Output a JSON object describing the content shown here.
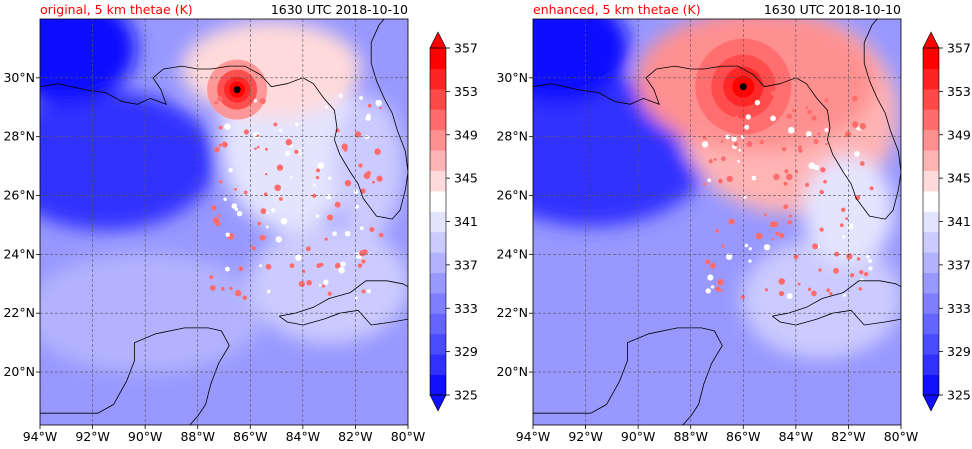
{
  "chart_data": [
    {
      "type": "heatmap",
      "title_left": "original, 5 km thetae (K)",
      "title_right": "1630 UTC 2018-10-10",
      "lon_ticks": [
        -94,
        -92,
        -90,
        -88,
        -86,
        -84,
        -82,
        -80
      ],
      "lat_ticks": [
        20,
        22,
        24,
        26,
        28,
        30
      ],
      "lon_tick_labels": [
        "94°W",
        "92°W",
        "90°W",
        "88°W",
        "86°W",
        "84°W",
        "82°W",
        "80°W"
      ],
      "lat_tick_labels": [
        "20°N",
        "22°N",
        "24°N",
        "26°N",
        "28°N",
        "30°N"
      ],
      "xlim": [
        -94,
        -80
      ],
      "ylim": [
        18.2,
        32
      ],
      "storm_center": {
        "lon": -86.5,
        "lat": 29.6
      },
      "colorbar_levels": [
        325,
        327,
        329,
        331,
        333,
        335,
        337,
        339,
        341,
        343,
        345,
        347,
        349,
        351,
        353,
        355,
        357
      ],
      "colorbar_tick_labels": [
        "325",
        "329",
        "333",
        "337",
        "341",
        "345",
        "349",
        "353",
        "357"
      ],
      "colorbar_colors": [
        "#1010ff",
        "#3030ff",
        "#4a4aff",
        "#6464ff",
        "#7e7eff",
        "#9898ff",
        "#b2b2ff",
        "#cbcbff",
        "#e4e4ff",
        "#ffffff",
        "#ffdada",
        "#ffb4b4",
        "#ff9090",
        "#ff6c6c",
        "#ff4848",
        "#ff2424",
        "#ff0000"
      ],
      "grid": true
    },
    {
      "type": "heatmap",
      "title_left": "enhanced, 5 km thetae (K)",
      "title_right": "1630 UTC 2018-10-10",
      "lon_ticks": [
        -94,
        -92,
        -90,
        -88,
        -86,
        -84,
        -82,
        -80
      ],
      "lat_ticks": [
        20,
        22,
        24,
        26,
        28,
        30
      ],
      "lon_tick_labels": [
        "94°W",
        "92°W",
        "90°W",
        "88°W",
        "86°W",
        "84°W",
        "82°W",
        "80°W"
      ],
      "lat_tick_labels": [
        "20°N",
        "22°N",
        "24°N",
        "26°N",
        "28°N",
        "30°N"
      ],
      "xlim": [
        -94,
        -80
      ],
      "ylim": [
        18.2,
        32
      ],
      "storm_center": {
        "lon": -86.0,
        "lat": 29.7
      },
      "colorbar_levels": [
        325,
        327,
        329,
        331,
        333,
        335,
        337,
        339,
        341,
        343,
        345,
        347,
        349,
        351,
        353,
        355,
        357
      ],
      "colorbar_tick_labels": [
        "325",
        "329",
        "333",
        "337",
        "341",
        "345",
        "349",
        "353",
        "357"
      ],
      "colorbar_colors": [
        "#1010ff",
        "#3030ff",
        "#4a4aff",
        "#6464ff",
        "#7e7eff",
        "#9898ff",
        "#b2b2ff",
        "#cbcbff",
        "#e4e4ff",
        "#ffffff",
        "#ffdada",
        "#ffb4b4",
        "#ff9090",
        "#ff6c6c",
        "#ff4848",
        "#ff2424",
        "#ff0000"
      ],
      "grid": true
    }
  ]
}
